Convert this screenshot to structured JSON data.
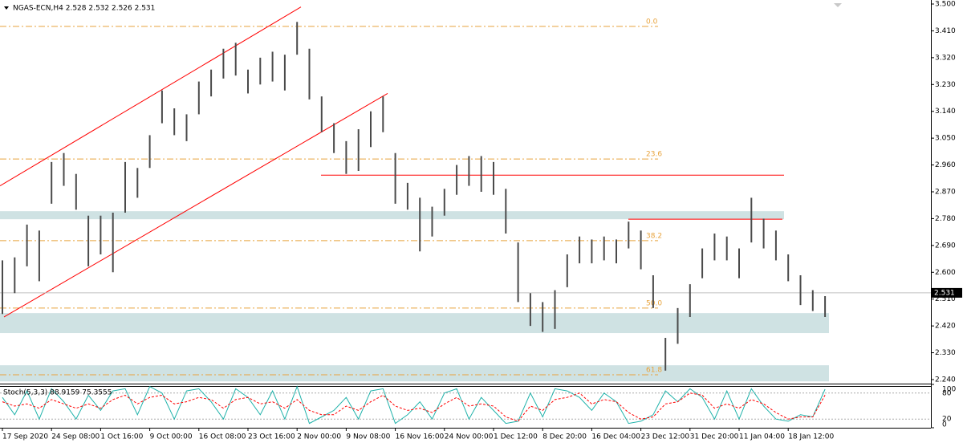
{
  "chart_data": [
    {
      "type": "ohlc",
      "title": "NGAS-ECN,H4  2.528 2.532 2.526 2.531",
      "categories": [
        "17 Sep 2020",
        null,
        null,
        null,
        "24 Sep 08:00",
        null,
        null,
        null,
        "1 Oct 16:00",
        null,
        null,
        null,
        "9 Oct 00:00",
        null,
        null,
        null,
        "16 Oct 08:00",
        null,
        null,
        null,
        "23 Oct 16:00",
        null,
        null,
        null,
        "2 Nov 00:00",
        null,
        null,
        null,
        "9 Nov 08:00",
        null,
        null,
        null,
        "16 Nov 16:00",
        null,
        null,
        null,
        "24 Nov 00:00",
        null,
        null,
        null,
        "1 Dec 12:00",
        null,
        null,
        null,
        "8 Dec 20:00",
        null,
        null,
        null,
        "16 Dec 04:00",
        null,
        null,
        null,
        "23 Dec 12:00",
        null,
        null,
        null,
        "31 Dec 20:00",
        null,
        null,
        null,
        "11 Jan 04:00",
        null,
        null,
        null,
        "18 Jan 12:00",
        null,
        null,
        null
      ],
      "high": [
        2.64,
        2.65,
        2.76,
        2.74,
        2.97,
        3.0,
        2.93,
        2.79,
        2.79,
        2.8,
        2.97,
        2.95,
        3.06,
        3.21,
        3.15,
        3.13,
        3.24,
        3.28,
        3.35,
        3.37,
        3.28,
        3.32,
        3.34,
        3.33,
        3.44,
        3.35,
        3.19,
        3.1,
        3.04,
        3.08,
        3.14,
        3.19,
        3.0,
        2.9,
        2.85,
        2.82,
        2.88,
        2.96,
        2.99,
        2.99,
        2.97,
        2.88,
        2.7,
        2.53,
        2.5,
        2.54,
        2.66,
        2.72,
        2.71,
        2.72,
        2.71,
        2.77,
        2.74,
        2.59,
        2.38,
        2.48,
        2.56,
        2.68,
        2.73,
        2.72,
        2.68,
        2.85,
        2.78,
        2.74,
        2.66,
        2.59,
        2.54,
        2.52
      ],
      "low": [
        2.46,
        2.53,
        2.62,
        2.57,
        2.83,
        2.89,
        2.81,
        2.62,
        2.66,
        2.6,
        2.8,
        2.85,
        2.95,
        3.1,
        3.06,
        3.04,
        3.13,
        3.19,
        3.25,
        3.26,
        3.2,
        3.23,
        3.24,
        3.21,
        3.33,
        3.18,
        3.07,
        3.0,
        2.93,
        2.94,
        3.02,
        3.07,
        2.83,
        2.81,
        2.67,
        2.72,
        2.79,
        2.86,
        2.89,
        2.87,
        2.86,
        2.73,
        2.5,
        2.42,
        2.4,
        2.41,
        2.55,
        2.63,
        2.63,
        2.64,
        2.63,
        2.68,
        2.61,
        2.48,
        2.27,
        2.36,
        2.45,
        2.58,
        2.64,
        2.64,
        2.58,
        2.7,
        2.68,
        2.64,
        2.57,
        2.49,
        2.47,
        2.45
      ],
      "color": "#4a4a4a",
      "ylim": [
        2.2265,
        3.5135
      ],
      "yticks": [
        {
          "value": 3.5,
          "label": "3.500"
        },
        {
          "value": 3.41,
          "label": "3.410"
        },
        {
          "value": 3.32,
          "label": "3.320"
        },
        {
          "value": 3.23,
          "label": "3.230"
        },
        {
          "value": 3.14,
          "label": "3.140"
        },
        {
          "value": 3.05,
          "label": "3.050"
        },
        {
          "value": 2.96,
          "label": "2.960"
        },
        {
          "value": 2.87,
          "label": "2.870"
        },
        {
          "value": 2.78,
          "label": "2.780"
        },
        {
          "value": 2.69,
          "label": "2.690"
        },
        {
          "value": 2.6,
          "label": "2.600"
        },
        {
          "value": 2.51,
          "label": "2.510"
        },
        {
          "value": 2.42,
          "label": "2.420"
        },
        {
          "value": 2.33,
          "label": "2.330"
        },
        {
          "value": 2.24,
          "label": "2.240"
        }
      ],
      "last_price": 2.531,
      "fibonacci": [
        {
          "label": "0.0",
          "value": 3.425
        },
        {
          "label": "23.6",
          "value": 2.98
        },
        {
          "label": "38.2",
          "value": 2.706
        },
        {
          "label": "50.0",
          "value": 2.48
        },
        {
          "label": "61.8",
          "value": 2.256
        }
      ],
      "fib_color": "#e8a33c",
      "zones": [
        [
          2.778,
          2.805
        ],
        [
          2.396,
          2.463
        ],
        [
          2.234,
          2.288
        ]
      ],
      "zone_color": "#cfe2e3",
      "levels": [
        2.926,
        2.778
      ],
      "channel": [
        [
          2.89,
          3.49
        ],
        [
          2.45,
          3.2
        ]
      ],
      "line_color": "#ff0000"
    },
    {
      "type": "stochastic",
      "title": "Stoch(5,3,3) 88.9159 75.3555",
      "series": [
        {
          "color": "#20b2aa",
          "values": [
            70,
            30,
            85,
            20,
            90,
            60,
            20,
            75,
            40,
            85,
            90,
            30,
            95,
            80,
            20,
            85,
            90,
            60,
            20,
            90,
            70,
            30,
            85,
            20,
            95,
            10,
            25,
            40,
            70,
            20,
            85,
            90,
            10,
            30,
            60,
            20,
            80,
            90,
            20,
            70,
            40,
            10,
            15,
            80,
            25,
            90,
            85,
            70,
            40,
            80,
            60,
            10,
            15,
            30,
            85,
            60,
            90,
            70,
            20,
            85,
            20,
            90,
            50,
            20,
            15,
            30,
            25,
            88.9159
          ]
        },
        {
          "color": "#ff0000",
          "values": [
            60,
            50,
            55,
            45,
            65,
            55,
            45,
            55,
            45,
            65,
            75,
            55,
            70,
            75,
            55,
            60,
            70,
            65,
            45,
            65,
            70,
            55,
            60,
            45,
            65,
            40,
            30,
            30,
            50,
            40,
            60,
            75,
            50,
            40,
            45,
            35,
            55,
            70,
            50,
            55,
            50,
            25,
            15,
            50,
            40,
            65,
            70,
            80,
            55,
            65,
            60,
            35,
            20,
            25,
            55,
            60,
            80,
            75,
            45,
            55,
            45,
            65,
            55,
            35,
            20,
            25,
            25,
            75.3555
          ]
        }
      ],
      "ylim": [
        0,
        100
      ],
      "yticks": [
        0,
        20,
        80,
        100
      ]
    }
  ]
}
